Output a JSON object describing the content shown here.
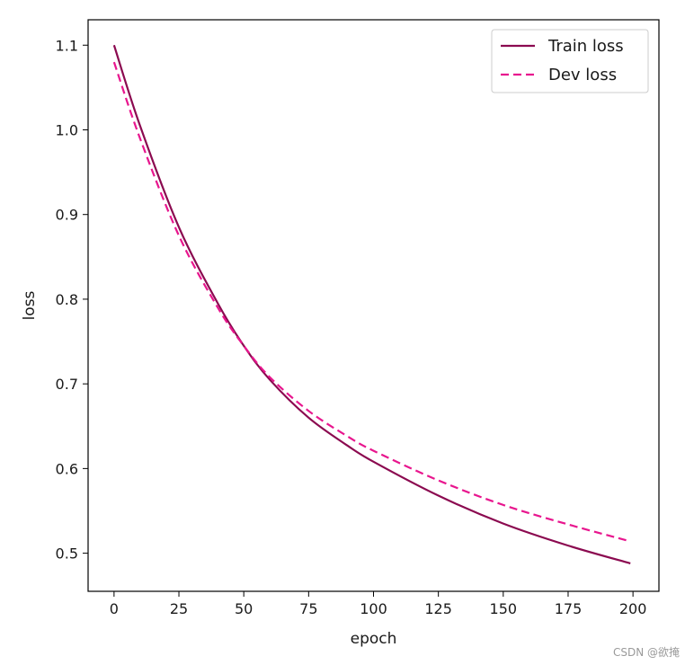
{
  "chart_data": {
    "type": "line",
    "xlabel": "epoch",
    "ylabel": "loss",
    "xlim": [
      -10,
      210
    ],
    "ylim": [
      0.455,
      1.13
    ],
    "xticks": [
      0,
      25,
      50,
      75,
      100,
      125,
      150,
      175,
      200
    ],
    "yticks": [
      0.5,
      0.6,
      0.7,
      0.8,
      0.9,
      1.0,
      1.1
    ],
    "ytick_labels": [
      "0.5",
      "0.6",
      "0.7",
      "0.8",
      "0.9",
      "1.0",
      "1.1"
    ],
    "grid": false,
    "legend_position": "top-right",
    "series": [
      {
        "name": "Train loss",
        "color": "#8b0a50",
        "style": "solid",
        "x": [
          0,
          10,
          25,
          40,
          50,
          60,
          75,
          90,
          100,
          125,
          150,
          175,
          199
        ],
        "y": [
          1.1,
          1.005,
          0.885,
          0.795,
          0.745,
          0.705,
          0.66,
          0.627,
          0.608,
          0.568,
          0.535,
          0.509,
          0.488
        ]
      },
      {
        "name": "Dev loss",
        "color": "#e8168e",
        "style": "dashed",
        "x": [
          0,
          10,
          25,
          40,
          50,
          60,
          75,
          90,
          100,
          125,
          150,
          175,
          199
        ],
        "y": [
          1.08,
          0.99,
          0.875,
          0.79,
          0.745,
          0.708,
          0.668,
          0.638,
          0.621,
          0.586,
          0.557,
          0.534,
          0.514
        ]
      }
    ]
  },
  "watermark": "CSDN @欲掩"
}
